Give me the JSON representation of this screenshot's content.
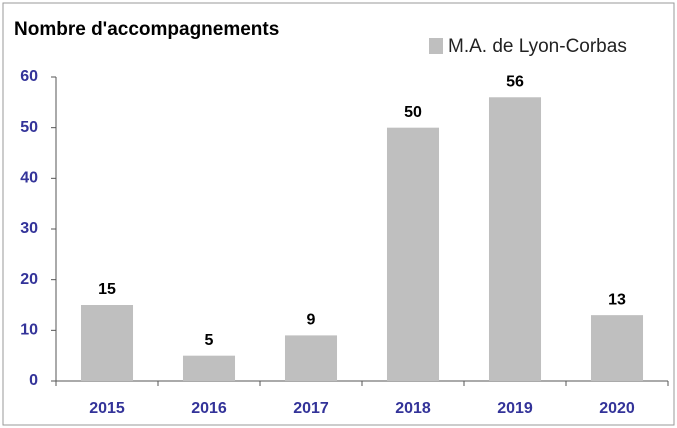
{
  "chart_data": {
    "type": "bar",
    "title": "Nombre d'accompagnements",
    "categories": [
      "2015",
      "2016",
      "2017",
      "2018",
      "2019",
      "2020"
    ],
    "series": [
      {
        "name": "M.A. de Lyon-Corbas",
        "color": "#bfbfbf",
        "values": [
          15,
          5,
          9,
          50,
          56,
          13
        ]
      }
    ],
    "ylim": [
      0,
      60
    ],
    "yticks": [
      0,
      10,
      20,
      30,
      40,
      50,
      60
    ],
    "grid": false,
    "legend": "top-right"
  }
}
